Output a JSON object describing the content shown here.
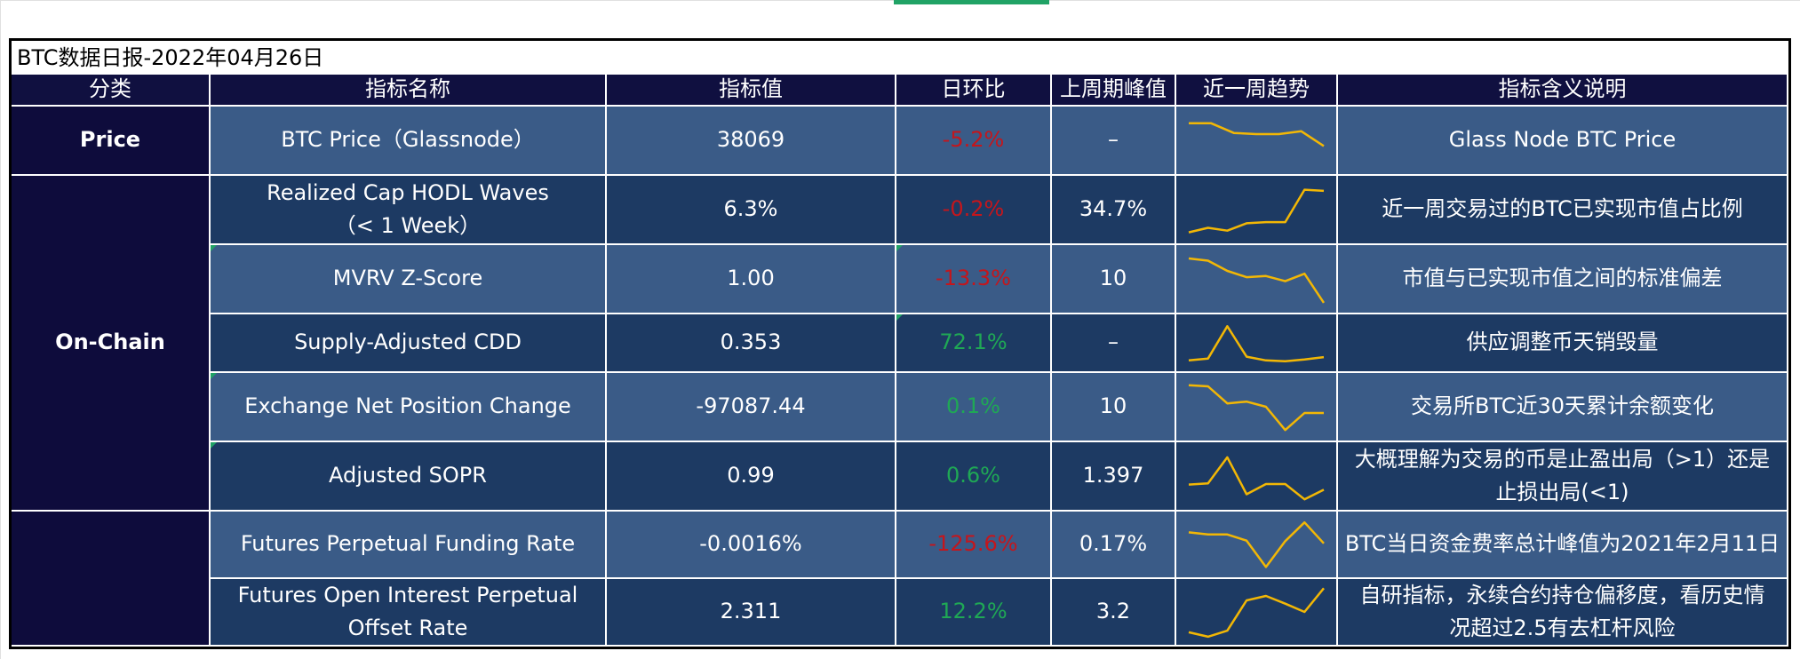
{
  "title": "BTC数据日报-2022年04月26日",
  "headers": {
    "category": "分类",
    "name": "指标名称",
    "value": "指标值",
    "change": "日环比",
    "peak": "上周期峰值",
    "trend": "近一周趋势",
    "desc": "指标含义说明"
  },
  "categories": {
    "price": "Price",
    "onchain": "On-Chain",
    "futures": ""
  },
  "rows": [
    {
      "name": "BTC Price（Glassnode）",
      "name2": "",
      "value": "38069",
      "change": "-5.2%",
      "peak": "–",
      "desc": "Glass Node BTC Price",
      "desc2": "",
      "trend": [
        8,
        8,
        6.3,
        6.1,
        6.1,
        6.6,
        4.0
      ]
    },
    {
      "name": "Realized Cap HODL Waves",
      "name2": "（< 1 Week）",
      "value": "6.3%",
      "change": "-0.2%",
      "peak": "34.7%",
      "desc": "近一周交易过的BTC已实现市值占比例",
      "desc2": "",
      "trend": [
        1.0,
        1.8,
        1.3,
        2.6,
        2.8,
        2.8,
        8.5,
        8.3
      ]
    },
    {
      "name": "MVRV Z-Score",
      "name2": "",
      "value": "1.00",
      "change": "-13.3%",
      "peak": "10",
      "desc": "市值与已实现市值之间的标准偏差",
      "desc2": "",
      "trend": [
        8.6,
        8.2,
        6.4,
        5.3,
        5.5,
        4.6,
        5.9,
        0.8
      ]
    },
    {
      "name": "Supply-Adjusted CDD",
      "name2": "",
      "value": "0.353",
      "change": "72.1%",
      "peak": "–",
      "desc": "供应调整币天销毁量",
      "desc2": "",
      "trend": [
        1.2,
        1.6,
        8.6,
        2.0,
        1.2,
        1.0,
        1.4,
        1.9
      ]
    },
    {
      "name": "Exchange Net Position Change",
      "name2": "",
      "value": "-97087.44",
      "change": "0.1%",
      "peak": "10",
      "desc": "交易所BTC近30天累计余额变化",
      "desc2": "",
      "trend": [
        8.8,
        8.6,
        5.6,
        5.9,
        5.0,
        0.9,
        3.9,
        3.9
      ]
    },
    {
      "name": "Adjusted SOPR",
      "name2": "",
      "value": "0.99",
      "change": "0.6%",
      "peak": "1.397",
      "desc": "大概理解为交易的币是止盈出局（>1）还是",
      "desc2": "止损出局(<1)",
      "trend": [
        3.5,
        3.7,
        8.3,
        1.8,
        3.6,
        3.6,
        0.9,
        2.6
      ]
    },
    {
      "name": "Futures Perpetual Funding Rate",
      "name2": "",
      "value": "-0.0016%",
      "change": "-125.6%",
      "peak": "0.17%",
      "desc": "BTC当日资金费率总计峰值为2021年2月11日",
      "desc2": "",
      "trend": [
        7.2,
        6.8,
        6.8,
        5.7,
        0.9,
        5.6,
        9.0,
        5.2
      ]
    },
    {
      "name": "Futures Open Interest Perpetual",
      "name2": "Offset Rate",
      "value": "2.311",
      "change": "12.2%",
      "peak": "3.2",
      "desc": "自研指标，永续合约持仓偏移度，看历史情",
      "desc2": "况超过2.5有去杠杆风险",
      "trend": [
        1.3,
        0.5,
        1.6,
        7.1,
        7.9,
        6.5,
        5.0,
        9.3
      ]
    }
  ],
  "colors": {
    "header_bg": "#101040",
    "category_bg": "#0e0c3c",
    "row_dark": "#1d3a63",
    "row_light": "#3a5b87",
    "negative": "#c4161c",
    "positive": "#1fa855",
    "trend_line": "#f2b705"
  }
}
